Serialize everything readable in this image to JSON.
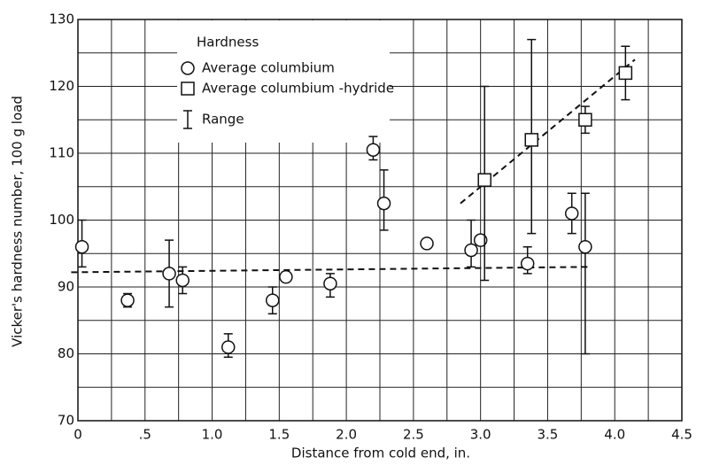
{
  "chart_data": {
    "type": "scatter",
    "x_label": "Distance from cold end,  in.",
    "y_label": "Vicker's hardness number,  100 g load",
    "legend_title": "Hardness",
    "legend": "upper left",
    "range_label": "Range",
    "color": "#111111",
    "grid": true,
    "xlim": [
      0,
      4.5
    ],
    "ylim": [
      70,
      130
    ],
    "xticks": [
      0,
      {
        "value": 0.5,
        "label": ".5"
      },
      {
        "value": 1,
        "label": "1.0"
      },
      1.5,
      {
        "value": 2,
        "label": "2.0"
      },
      2.5,
      {
        "value": 3,
        "label": "3.0"
      },
      3.5,
      {
        "value": 4,
        "label": "4.0"
      },
      {
        "value": 4.5,
        "label": "4.5"
      }
    ],
    "yticks": [
      70,
      80,
      90,
      100,
      110,
      120,
      130
    ],
    "x_minor_ticks": [
      0.25,
      0.75,
      1.25,
      1.75,
      2.25,
      2.75,
      3.25,
      3.75,
      4.25
    ],
    "y_minor_ticks": [
      75,
      85,
      95,
      105,
      115,
      125
    ],
    "series": [
      {
        "name": "Average columbium",
        "marker": "circle",
        "x": [
          0.03,
          0.37,
          0.68,
          0.78,
          1.12,
          1.45,
          1.55,
          1.88,
          2.2,
          2.28,
          2.6,
          2.93,
          3.0,
          3.35,
          3.68,
          3.78
        ],
        "values": [
          96,
          88,
          92,
          91,
          81,
          88,
          91.5,
          90.5,
          110.5,
          102.5,
          96.5,
          95.5,
          97,
          93.5,
          101,
          96
        ],
        "low": [
          93,
          87,
          87,
          89,
          79.5,
          86,
          null,
          88.5,
          109,
          98.5,
          null,
          93,
          null,
          92,
          98,
          80
        ],
        "high": [
          100,
          89,
          97,
          93,
          83,
          90,
          null,
          92,
          112.5,
          107.5,
          null,
          100,
          null,
          96,
          104,
          104
        ]
      },
      {
        "name": "Average columbium -hydride",
        "marker": "square",
        "x": [
          3.03,
          3.38,
          3.78,
          4.08
        ],
        "values": [
          106,
          112,
          115,
          122
        ],
        "low": [
          91,
          98,
          113,
          118
        ],
        "high": [
          120,
          127,
          117,
          126
        ]
      }
    ],
    "trend_lines": [
      {
        "x": [
          -0.05,
          3.8
        ],
        "y": [
          92.2,
          93
        ]
      },
      {
        "x": [
          2.85,
          4.15
        ],
        "y": [
          102.5,
          124
        ]
      }
    ]
  }
}
